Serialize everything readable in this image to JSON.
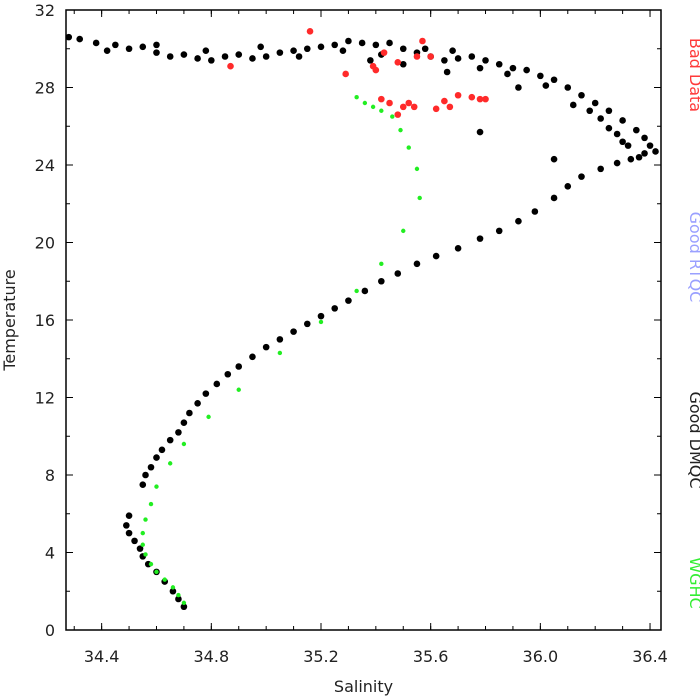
{
  "chart_data": {
    "type": "scatter",
    "xlabel": "Salinity",
    "ylabel": "Temperature",
    "xlim": [
      34.27,
      36.44
    ],
    "ylim": [
      0,
      32
    ],
    "xticks": [
      "34.4",
      "34.8",
      "35.2",
      "35.6",
      "36.0",
      "36.4"
    ],
    "yticks": [
      "0",
      "4",
      "8",
      "12",
      "16",
      "20",
      "24",
      "28",
      "32"
    ],
    "xtick_values": [
      34.4,
      34.8,
      35.2,
      35.6,
      36.0,
      36.4
    ],
    "ytick_values": [
      0,
      4,
      8,
      12,
      16,
      20,
      24,
      28,
      32
    ],
    "legend_placement": "right",
    "legend": [
      {
        "label": "Bad Data",
        "color": "#ff3a3a"
      },
      {
        "label": "Good RTQC",
        "color": "#9aa0ff"
      },
      {
        "label": "Good DMQC",
        "color": "#222222"
      },
      {
        "label": "WGHC",
        "color": "#33ee33"
      }
    ],
    "series": [
      {
        "name": "Good DMQC",
        "color": "#000000",
        "points": [
          [
            34.28,
            30.6
          ],
          [
            34.32,
            30.5
          ],
          [
            34.38,
            30.3
          ],
          [
            34.45,
            30.2
          ],
          [
            34.5,
            30.0
          ],
          [
            34.55,
            30.1
          ],
          [
            34.6,
            29.8
          ],
          [
            34.65,
            29.6
          ],
          [
            34.7,
            29.7
          ],
          [
            34.75,
            29.5
          ],
          [
            34.8,
            29.4
          ],
          [
            34.85,
            29.6
          ],
          [
            34.9,
            29.7
          ],
          [
            34.95,
            29.5
          ],
          [
            35.0,
            29.6
          ],
          [
            35.05,
            29.8
          ],
          [
            35.1,
            29.9
          ],
          [
            35.15,
            30.0
          ],
          [
            35.2,
            30.1
          ],
          [
            35.25,
            30.2
          ],
          [
            35.3,
            30.4
          ],
          [
            35.35,
            30.3
          ],
          [
            35.4,
            30.2
          ],
          [
            35.45,
            30.3
          ],
          [
            35.5,
            30.0
          ],
          [
            35.55,
            29.8
          ],
          [
            35.6,
            29.6
          ],
          [
            35.65,
            29.4
          ],
          [
            35.7,
            29.5
          ],
          [
            35.75,
            29.6
          ],
          [
            35.8,
            29.4
          ],
          [
            35.85,
            29.2
          ],
          [
            35.9,
            29.0
          ],
          [
            35.95,
            28.9
          ],
          [
            36.0,
            28.6
          ],
          [
            36.05,
            28.4
          ],
          [
            36.1,
            28.0
          ],
          [
            36.15,
            27.6
          ],
          [
            36.2,
            27.2
          ],
          [
            36.25,
            26.8
          ],
          [
            36.3,
            26.3
          ],
          [
            36.35,
            25.8
          ],
          [
            36.38,
            25.4
          ],
          [
            36.4,
            25.0
          ],
          [
            36.38,
            24.6
          ],
          [
            36.33,
            24.3
          ],
          [
            36.28,
            24.1
          ],
          [
            36.22,
            23.8
          ],
          [
            36.15,
            23.4
          ],
          [
            36.1,
            22.9
          ],
          [
            36.05,
            22.3
          ],
          [
            35.98,
            21.6
          ],
          [
            35.92,
            21.1
          ],
          [
            35.85,
            20.6
          ],
          [
            35.78,
            20.2
          ],
          [
            35.7,
            19.7
          ],
          [
            35.62,
            19.3
          ],
          [
            35.55,
            18.9
          ],
          [
            35.48,
            18.4
          ],
          [
            35.42,
            18.0
          ],
          [
            35.36,
            17.5
          ],
          [
            35.3,
            17.0
          ],
          [
            35.25,
            16.6
          ],
          [
            35.2,
            16.2
          ],
          [
            35.15,
            15.8
          ],
          [
            35.1,
            15.4
          ],
          [
            35.05,
            15.0
          ],
          [
            35.0,
            14.6
          ],
          [
            34.95,
            14.1
          ],
          [
            34.9,
            13.6
          ],
          [
            34.86,
            13.2
          ],
          [
            34.82,
            12.7
          ],
          [
            34.78,
            12.2
          ],
          [
            34.75,
            11.7
          ],
          [
            34.72,
            11.2
          ],
          [
            34.7,
            10.7
          ],
          [
            34.68,
            10.2
          ],
          [
            34.65,
            9.8
          ],
          [
            34.62,
            9.3
          ],
          [
            34.6,
            8.9
          ],
          [
            34.58,
            8.4
          ],
          [
            34.56,
            8.0
          ],
          [
            34.55,
            7.5
          ],
          [
            34.5,
            5.9
          ],
          [
            34.49,
            5.4
          ],
          [
            34.5,
            5.0
          ],
          [
            34.52,
            4.6
          ],
          [
            34.54,
            4.2
          ],
          [
            34.55,
            3.8
          ],
          [
            34.57,
            3.4
          ],
          [
            34.6,
            3.0
          ],
          [
            34.63,
            2.5
          ],
          [
            34.66,
            2.0
          ],
          [
            34.68,
            1.6
          ],
          [
            34.7,
            1.2
          ],
          [
            34.42,
            29.9
          ],
          [
            34.6,
            30.2
          ],
          [
            34.78,
            29.9
          ],
          [
            34.98,
            30.1
          ],
          [
            35.12,
            29.6
          ],
          [
            35.28,
            29.9
          ],
          [
            35.42,
            29.7
          ],
          [
            35.58,
            30.0
          ],
          [
            35.68,
            29.9
          ],
          [
            35.78,
            29.0
          ],
          [
            35.88,
            28.7
          ],
          [
            36.02,
            28.1
          ],
          [
            36.12,
            27.1
          ],
          [
            36.22,
            26.4
          ],
          [
            36.28,
            25.6
          ],
          [
            36.32,
            25.0
          ],
          [
            36.36,
            24.4
          ],
          [
            36.42,
            24.7
          ],
          [
            36.3,
            25.2
          ],
          [
            36.25,
            25.9
          ],
          [
            36.18,
            26.8
          ],
          [
            35.92,
            28.0
          ],
          [
            35.78,
            25.7
          ],
          [
            36.05,
            24.3
          ],
          [
            35.66,
            28.8
          ],
          [
            35.5,
            29.2
          ],
          [
            35.38,
            29.4
          ]
        ]
      },
      {
        "name": "Bad Data",
        "color": "#ff2a2a",
        "points": [
          [
            35.16,
            30.9
          ],
          [
            34.87,
            29.1
          ],
          [
            35.29,
            28.7
          ],
          [
            35.39,
            29.1
          ],
          [
            35.42,
            27.4
          ],
          [
            35.45,
            27.2
          ],
          [
            35.48,
            26.6
          ],
          [
            35.5,
            27.0
          ],
          [
            35.52,
            27.2
          ],
          [
            35.54,
            27.0
          ],
          [
            35.55,
            29.6
          ],
          [
            35.57,
            30.4
          ],
          [
            35.6,
            29.6
          ],
          [
            35.62,
            26.9
          ],
          [
            35.65,
            27.3
          ],
          [
            35.67,
            27.0
          ],
          [
            35.7,
            27.6
          ],
          [
            35.75,
            27.5
          ],
          [
            35.78,
            27.4
          ],
          [
            35.8,
            27.4
          ],
          [
            35.48,
            29.3
          ],
          [
            35.43,
            29.8
          ],
          [
            35.4,
            28.9
          ]
        ]
      },
      {
        "name": "WGHC",
        "color": "#22ee22",
        "points": [
          [
            35.33,
            27.5
          ],
          [
            35.36,
            27.2
          ],
          [
            35.39,
            27.0
          ],
          [
            35.42,
            26.8
          ],
          [
            35.46,
            26.5
          ],
          [
            35.49,
            25.8
          ],
          [
            35.52,
            24.9
          ],
          [
            35.55,
            23.8
          ],
          [
            35.56,
            22.3
          ],
          [
            35.5,
            20.6
          ],
          [
            35.42,
            18.9
          ],
          [
            35.33,
            17.5
          ],
          [
            35.2,
            15.9
          ],
          [
            35.05,
            14.3
          ],
          [
            34.9,
            12.4
          ],
          [
            34.79,
            11.0
          ],
          [
            34.7,
            9.6
          ],
          [
            34.65,
            8.6
          ],
          [
            34.6,
            7.4
          ],
          [
            34.58,
            6.5
          ],
          [
            34.56,
            5.7
          ],
          [
            34.55,
            5.0
          ],
          [
            34.55,
            4.4
          ],
          [
            34.56,
            3.9
          ],
          [
            34.58,
            3.4
          ],
          [
            34.6,
            3.0
          ],
          [
            34.63,
            2.6
          ],
          [
            34.66,
            2.2
          ],
          [
            34.68,
            1.8
          ],
          [
            34.7,
            1.4
          ]
        ]
      }
    ]
  }
}
